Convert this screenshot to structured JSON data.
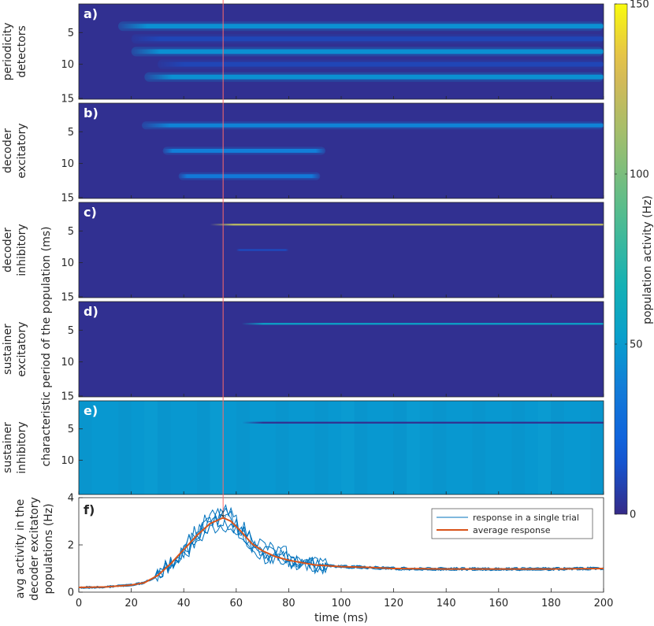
{
  "colors": {
    "bg_low": "#352a87",
    "cyan_high": "#0ba7d3",
    "yellow": "#f9fb0e",
    "trial_line": "#0072bd",
    "avg_line": "#d95319",
    "marker_line": "#ff6a6a"
  },
  "chart_data": [
    {
      "type": "heatmap",
      "panel": "a)",
      "row_label": [
        "periodicity",
        "detectors"
      ],
      "yticks": [
        5,
        10,
        15
      ],
      "ylim": [
        1,
        15
      ],
      "xlim": [
        0,
        200
      ],
      "background_hz": 2,
      "streaks": [
        {
          "period": 4,
          "t_start": 15,
          "t_end": 200,
          "hz": 45
        },
        {
          "period": 8,
          "t_start": 20,
          "t_end": 200,
          "hz": 45
        },
        {
          "period": 12,
          "t_start": 25,
          "t_end": 200,
          "hz": 45
        },
        {
          "period": 6,
          "t_start": 20,
          "t_end": 200,
          "hz": 10
        },
        {
          "period": 10,
          "t_start": 30,
          "t_end": 200,
          "hz": 10
        }
      ]
    },
    {
      "type": "heatmap",
      "panel": "b)",
      "row_label": [
        "decoder",
        "excitatory"
      ],
      "yticks": [
        5,
        10,
        15
      ],
      "ylim": [
        1,
        15
      ],
      "xlim": [
        0,
        200
      ],
      "background_hz": 2,
      "streaks": [
        {
          "period": 4,
          "t_start": 24,
          "t_end": 200,
          "hz": 40
        },
        {
          "period": 8,
          "t_start": 32,
          "t_end": 94,
          "hz": 38
        },
        {
          "period": 12,
          "t_start": 38,
          "t_end": 92,
          "hz": 35
        }
      ]
    },
    {
      "type": "heatmap",
      "panel": "c)",
      "row_label": [
        "decoder",
        "inhibitory"
      ],
      "yticks": [
        5,
        10,
        15
      ],
      "ylim": [
        1,
        15
      ],
      "xlim": [
        0,
        200
      ],
      "background_hz": 2,
      "streaks": [
        {
          "period": 4,
          "t_start": 50,
          "t_end": 200,
          "hz": 120
        },
        {
          "period": 8,
          "t_start": 60,
          "t_end": 80,
          "hz": 12
        }
      ]
    },
    {
      "type": "heatmap",
      "panel": "d)",
      "row_label": [
        "sustainer",
        "excitatory"
      ],
      "yticks": [
        5,
        10,
        15
      ],
      "ylim": [
        1,
        15
      ],
      "xlim": [
        0,
        200
      ],
      "background_hz": 2,
      "streaks": [
        {
          "period": 4,
          "t_start": 62,
          "t_end": 200,
          "hz": 55
        }
      ]
    },
    {
      "type": "heatmap",
      "panel": "e)",
      "row_label": [
        "sustainer",
        "inhibitory"
      ],
      "yticks": [
        5,
        10
      ],
      "ylim": [
        1,
        15
      ],
      "xlim": [
        0,
        200
      ],
      "background_hz": 48,
      "streaks": [
        {
          "period": 4,
          "t_start": 62,
          "t_end": 200,
          "hz": 2
        }
      ]
    },
    {
      "type": "line",
      "panel": "f)",
      "row_label": [
        "avg activity in the",
        "decoder excitatory",
        "populations (Hz)"
      ],
      "xlabel": "time (ms)",
      "xlim": [
        0,
        200
      ],
      "ylim": [
        0,
        4
      ],
      "xticks": [
        0,
        20,
        40,
        60,
        80,
        100,
        120,
        140,
        160,
        180,
        200
      ],
      "yticks": [
        0,
        2,
        4
      ],
      "legend_position": "top-right",
      "average_points": {
        "x": [
          0,
          10,
          20,
          25,
          30,
          35,
          40,
          45,
          50,
          55,
          58,
          62,
          66,
          70,
          75,
          80,
          90,
          100,
          110,
          120,
          140,
          160,
          180,
          200
        ],
        "y": [
          0.2,
          0.22,
          0.3,
          0.4,
          0.7,
          1.2,
          1.8,
          2.4,
          2.9,
          3.15,
          3.0,
          2.55,
          2.05,
          1.75,
          1.5,
          1.35,
          1.15,
          1.08,
          1.05,
          1.0,
          0.98,
          0.98,
          0.98,
          1.0
        ]
      },
      "single_trial_count": 5,
      "series": [
        {
          "name": "response in a single trial"
        },
        {
          "name": "average response"
        }
      ],
      "marker": {
        "x": 55,
        "symbol": "↓"
      }
    }
  ],
  "shared": {
    "ylabel": "characteristic period of the population (ms)",
    "colorbar": {
      "label": "population activity (Hz)",
      "ticks": [
        0,
        50,
        100,
        150
      ],
      "range": [
        0,
        150
      ]
    }
  }
}
